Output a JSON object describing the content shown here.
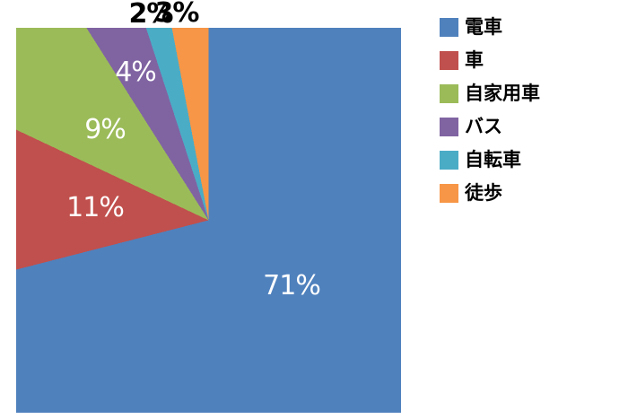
{
  "chart_data": {
    "type": "pie",
    "title": "",
    "unit": "%",
    "legend_position": "right",
    "plot_shape": "square-clipped-pie",
    "start_angle_deg": 0,
    "direction": "clockwise",
    "background_color": "#FFFFFF",
    "categories": [
      "電車",
      "車",
      "自家用車",
      "バス",
      "自転車",
      "徒歩"
    ],
    "values": [
      71,
      11,
      9,
      4,
      2,
      3
    ],
    "colors": [
      "#4F81BD",
      "#C0504D",
      "#9BBB59",
      "#8064A2",
      "#4BACC6",
      "#F79646"
    ],
    "slice_labels": [
      {
        "text": "71%",
        "color": "#FFFFFF",
        "placement": "inside"
      },
      {
        "text": "11%",
        "color": "#FFFFFF",
        "placement": "inside"
      },
      {
        "text": "9%",
        "color": "#FFFFFF",
        "placement": "inside"
      },
      {
        "text": "4%",
        "color": "#FFFFFF",
        "placement": "inside"
      },
      {
        "text": "2%",
        "color": "#000000",
        "placement": "outside-top"
      },
      {
        "text": "3%",
        "color": "#000000",
        "placement": "outside-top"
      }
    ],
    "legend": [
      {
        "label": "電車",
        "color": "#4F81BD",
        "value": 71
      },
      {
        "label": "車",
        "color": "#C0504D",
        "value": 11
      },
      {
        "label": "自家用車",
        "color": "#9BBB59",
        "value": 9
      },
      {
        "label": "バス",
        "color": "#8064A2",
        "value": 4
      },
      {
        "label": "自転車",
        "color": "#4BACC6",
        "value": 2
      },
      {
        "label": "徒歩",
        "color": "#F79646",
        "value": 3
      }
    ]
  }
}
